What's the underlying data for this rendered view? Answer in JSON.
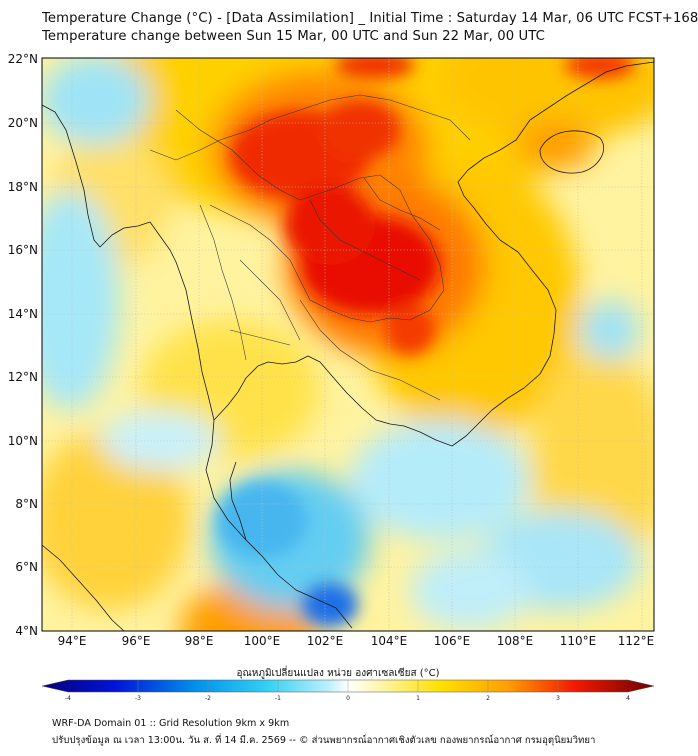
{
  "title_line1": "Temperature Change (°C) - [Data Assimilation] _ Initial Time : Saturday 14 Mar, 06 UTC FCST+168",
  "title_line2": "Temperature change between Sun 15 Mar, 00 UTC and Sun 22 Mar, 00 UTC",
  "lat_labels": [
    "22°N",
    "20°N",
    "18°N",
    "16°N",
    "14°N",
    "12°N",
    "10°N",
    "8°N",
    "6°N",
    "4°N"
  ],
  "lon_labels": [
    "94°E",
    "96°E",
    "98°E",
    "100°E",
    "102°E",
    "104°E",
    "106°E",
    "108°E",
    "110°E",
    "112°E"
  ],
  "colorbar": {
    "title": "อุณหภูมิเปลี่ยนแปลง หน่วย องศาเซลเซียส (°C)",
    "ticks": [
      "-4",
      "-3",
      "-2",
      "-1",
      "0",
      "1",
      "2",
      "3",
      "4"
    ],
    "min": -4,
    "max": 4
  },
  "footer_line1": "WRF-DA Domain 01 :: Grid Resolution 9km x 9km",
  "footer_line2": "ปรับปรุงข้อมูล ณ เวลา 13:00น. วัน ส. ที่ 14 มี.ค. 2569 -- © ส่วนพยากรณ์อากาศเชิงตัวเลข กองพยากรณ์อากาศ กรมอุตุนิยมวิทยา",
  "colors": {
    "hot": "#e60000",
    "warm": "#ffcc00",
    "neutral": "#fffbd0",
    "cool": "#8fe0f5",
    "cold": "#1565e0"
  }
}
